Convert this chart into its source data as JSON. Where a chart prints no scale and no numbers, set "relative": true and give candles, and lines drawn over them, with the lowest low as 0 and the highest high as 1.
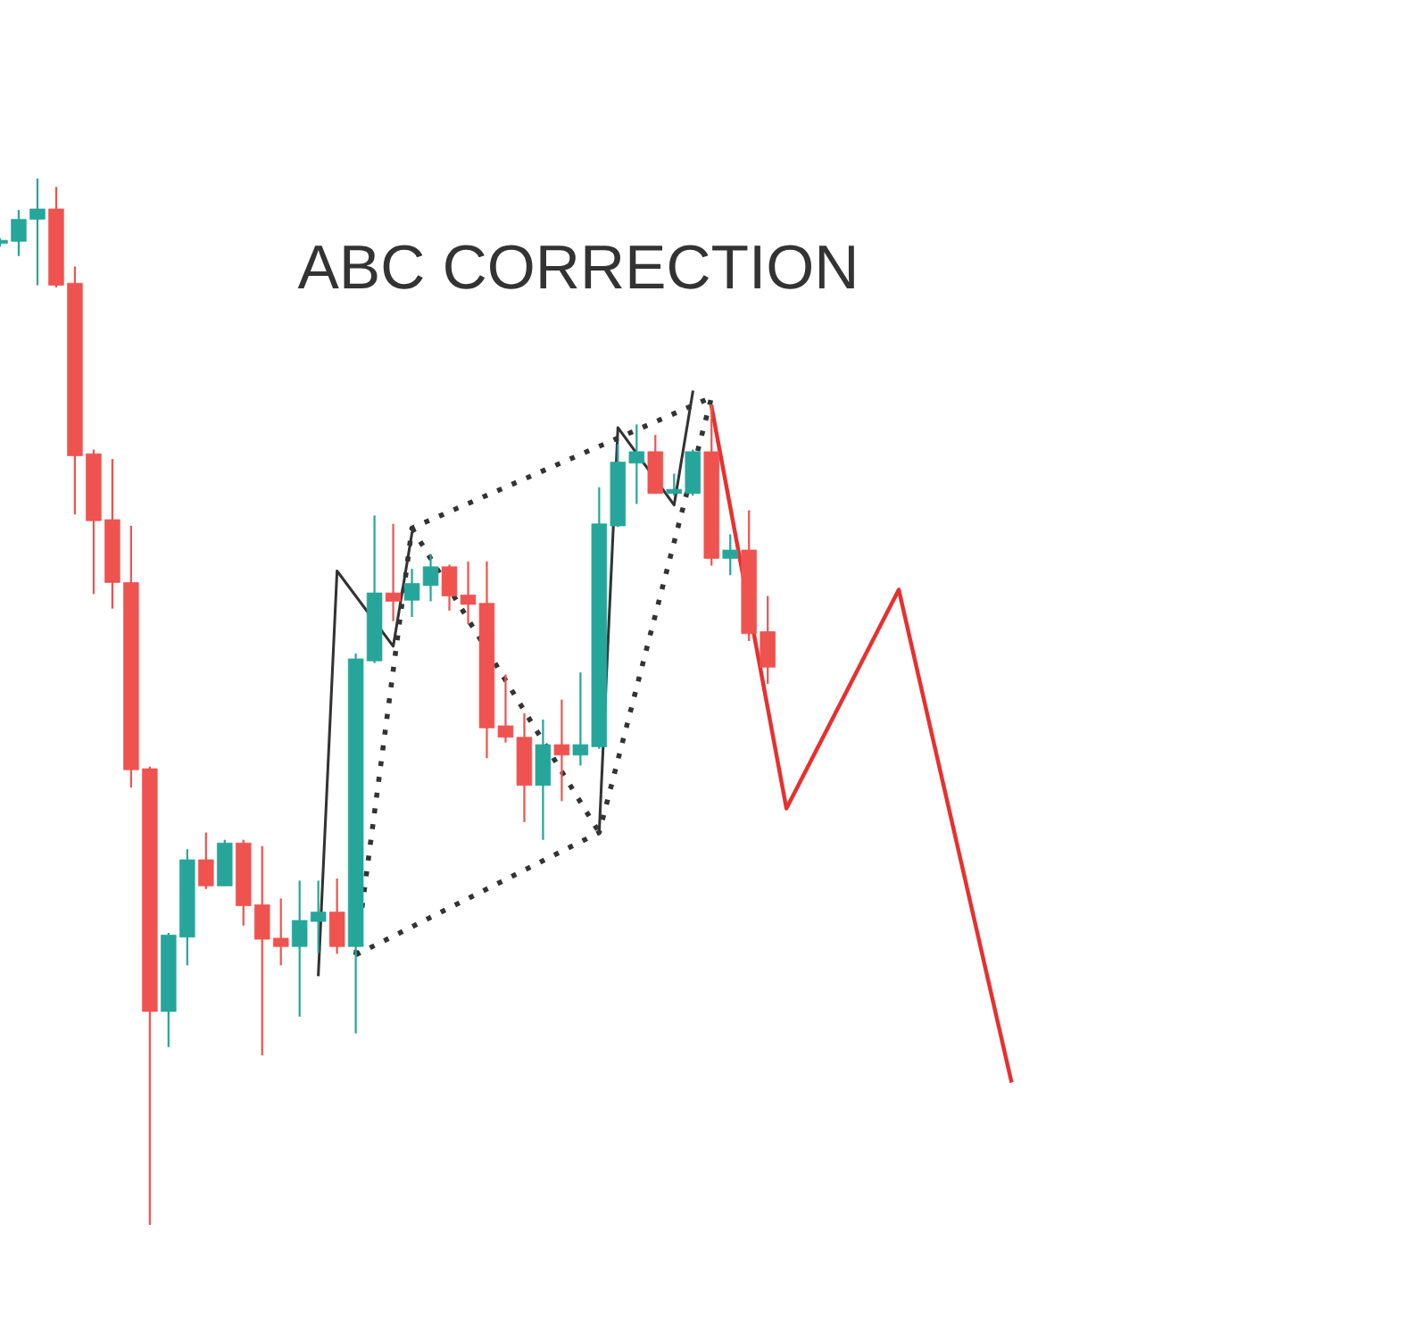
{
  "chart_data": {
    "type": "candlestick",
    "relative": true,
    "annotations": [
      "ABC CORRECTION"
    ],
    "categories": [
      null,
      null,
      null,
      null,
      null,
      null,
      null,
      null,
      null,
      null,
      null,
      null,
      null,
      null,
      null,
      null,
      null,
      null,
      null,
      null,
      null,
      null,
      null,
      null,
      null,
      null,
      null,
      null,
      null,
      null,
      null,
      null,
      null,
      null,
      null,
      null,
      null,
      null,
      null,
      null,
      null,
      null,
      null,
      null,
      null,
      null,
      null,
      null,
      null,
      null,
      null,
      null,
      null,
      null,
      null
    ],
    "ohlc": [
      [
        0.938,
        0.943,
        0.935,
        0.941
      ],
      [
        0.94,
        0.97,
        0.926,
        0.961
      ],
      [
        0.961,
        1.0,
        0.898,
        0.971
      ],
      [
        0.971,
        0.992,
        0.896,
        0.898
      ],
      [
        0.9,
        0.916,
        0.679,
        0.735
      ],
      [
        0.737,
        0.741,
        0.603,
        0.673
      ],
      [
        0.674,
        0.732,
        0.589,
        0.614
      ],
      [
        0.614,
        0.668,
        0.418,
        0.435
      ],
      [
        0.436,
        0.438,
        0.0,
        0.204
      ],
      [
        0.204,
        0.279,
        0.17,
        0.277
      ],
      [
        0.275,
        0.359,
        0.248,
        0.349
      ],
      [
        0.349,
        0.375,
        0.321,
        0.324
      ],
      [
        0.324,
        0.368,
        0.324,
        0.365
      ],
      [
        0.365,
        0.368,
        0.286,
        0.305
      ],
      [
        0.306,
        0.362,
        0.162,
        0.273
      ],
      [
        0.274,
        0.312,
        0.248,
        0.266
      ],
      [
        0.266,
        0.329,
        0.199,
        0.291
      ],
      [
        0.29,
        0.329,
        0.26,
        0.299
      ],
      [
        0.299,
        0.331,
        0.259,
        0.266
      ],
      [
        0.266,
        0.546,
        0.183,
        0.541
      ],
      [
        0.539,
        0.678,
        0.537,
        0.604
      ],
      [
        0.604,
        0.67,
        0.577,
        0.596
      ],
      [
        0.597,
        0.627,
        0.581,
        0.613
      ],
      [
        0.611,
        0.641,
        0.596,
        0.629
      ],
      [
        0.629,
        0.631,
        0.587,
        0.601
      ],
      [
        0.602,
        0.634,
        0.574,
        0.593
      ],
      [
        0.594,
        0.634,
        0.446,
        0.475
      ],
      [
        0.477,
        0.526,
        0.461,
        0.466
      ],
      [
        0.466,
        0.489,
        0.385,
        0.42
      ],
      [
        0.42,
        0.483,
        0.368,
        0.459
      ],
      [
        0.459,
        0.502,
        0.405,
        0.449
      ],
      [
        0.449,
        0.528,
        0.439,
        0.459
      ],
      [
        0.457,
        0.705,
        0.455,
        0.67
      ],
      [
        0.668,
        0.746,
        0.667,
        0.729
      ],
      [
        0.728,
        0.765,
        0.689,
        0.739
      ],
      [
        0.739,
        0.755,
        0.699,
        0.699
      ],
      [
        0.699,
        0.718,
        0.697,
        0.703
      ],
      [
        0.699,
        0.741,
        0.697,
        0.739
      ],
      [
        0.739,
        0.784,
        0.63,
        0.637
      ],
      [
        0.637,
        0.66,
        0.621,
        0.645
      ],
      [
        0.645,
        0.683,
        0.558,
        0.565
      ],
      [
        0.567,
        0.601,
        0.517,
        0.533
      ],
      null,
      null,
      null,
      null,
      null,
      null,
      null,
      null,
      null,
      null,
      null,
      null,
      null
    ],
    "colors": [
      "#26a69a",
      "#26a69a",
      "#26a69a",
      "#ef5350",
      "#ef5350",
      "#ef5350",
      "#ef5350",
      "#ef5350",
      "#ef5350",
      "#26a69a",
      "#26a69a",
      "#ef5350",
      "#26a69a",
      "#ef5350",
      "#ef5350",
      "#ef5350",
      "#26a69a",
      "#26a69a",
      "#ef5350",
      "#26a69a",
      "#26a69a",
      "#ef5350",
      "#26a69a",
      "#26a69a",
      "#ef5350",
      "#ef5350",
      "#ef5350",
      "#ef5350",
      "#ef5350",
      "#26a69a",
      "#ef5350",
      "#26a69a",
      "#26a69a",
      "#26a69a",
      "#26a69a",
      "#ef5350",
      "#26a69a",
      "#26a69a",
      "#ef5350",
      "#26a69a",
      "#ef5350",
      "#ef5350",
      null,
      null,
      null,
      null,
      null,
      null,
      null,
      null,
      null,
      null,
      null,
      null,
      null
    ],
    "series": [
      {
        "type": "line",
        "color": "#333333",
        "line_style": "solid",
        "values": [
          null,
          null,
          null,
          null,
          null,
          null,
          null,
          null,
          null,
          null,
          null,
          null,
          null,
          null,
          null,
          null,
          null,
          0.239,
          0.625,
          null,
          null,
          0.553,
          0.661,
          null,
          null,
          null,
          null,
          null,
          null,
          null,
          null,
          null,
          null,
          null,
          null,
          null,
          null,
          null,
          null,
          null,
          null,
          null,
          null,
          null,
          null,
          null,
          null,
          null,
          null,
          null,
          null,
          null,
          null,
          null,
          null
        ]
      },
      {
        "type": "line",
        "color": "#333333",
        "line_style": "solid",
        "values": [
          null,
          null,
          null,
          null,
          null,
          null,
          null,
          null,
          null,
          null,
          null,
          null,
          null,
          null,
          null,
          null,
          null,
          null,
          null,
          null,
          null,
          null,
          null,
          null,
          null,
          null,
          null,
          null,
          null,
          null,
          null,
          null,
          0.375,
          0.762,
          null,
          null,
          0.688,
          0.796,
          null,
          null,
          null,
          null,
          null,
          null,
          null,
          null,
          null,
          null,
          null,
          null,
          null,
          null,
          null,
          null,
          null
        ]
      },
      {
        "type": "line",
        "color": "#333333",
        "line_style": "dotted",
        "values": [
          null,
          null,
          null,
          null,
          null,
          null,
          null,
          null,
          null,
          null,
          null,
          null,
          null,
          null,
          null,
          null,
          null,
          null,
          null,
          0.258,
          null,
          null,
          0.666,
          null,
          null,
          null,
          null,
          null,
          null,
          null,
          null,
          null,
          null,
          null,
          null,
          null,
          null,
          null,
          0.791,
          null,
          null,
          null,
          null,
          null,
          null,
          null,
          null,
          null,
          null,
          null,
          null,
          null,
          null,
          null,
          null
        ]
      },
      {
        "type": "line",
        "color": "#333333",
        "line_style": "dotted",
        "values": [
          null,
          null,
          null,
          null,
          null,
          null,
          null,
          null,
          null,
          null,
          null,
          null,
          null,
          null,
          null,
          null,
          null,
          null,
          null,
          0.258,
          null,
          null,
          null,
          null,
          null,
          null,
          null,
          null,
          null,
          null,
          null,
          null,
          0.375,
          null,
          null,
          null,
          null,
          null,
          0.791,
          null,
          null,
          null,
          null,
          null,
          null,
          null,
          null,
          null,
          null,
          null,
          null,
          null,
          null,
          null,
          null
        ]
      },
      {
        "type": "line",
        "color": "#333333",
        "line_style": "dotted",
        "values": [
          null,
          null,
          null,
          null,
          null,
          null,
          null,
          null,
          null,
          null,
          null,
          null,
          null,
          null,
          null,
          null,
          null,
          null,
          null,
          null,
          null,
          null,
          0.666,
          null,
          null,
          null,
          null,
          null,
          null,
          null,
          null,
          null,
          0.375,
          null,
          null,
          null,
          null,
          null,
          null,
          null,
          null,
          null,
          null,
          null,
          null,
          null,
          null,
          null,
          null,
          null,
          null,
          null,
          null,
          null,
          null
        ]
      },
      {
        "type": "line",
        "color": "#e8302f",
        "line_style": "solid",
        "values": [
          null,
          null,
          null,
          null,
          null,
          null,
          null,
          null,
          null,
          null,
          null,
          null,
          null,
          null,
          null,
          null,
          null,
          null,
          null,
          null,
          null,
          null,
          null,
          null,
          null,
          null,
          null,
          null,
          null,
          null,
          null,
          null,
          null,
          null,
          null,
          null,
          null,
          null,
          0.782,
          null,
          null,
          null,
          0.398,
          null,
          null,
          null,
          null,
          null,
          0.607,
          null,
          null,
          null,
          null,
          null,
          0.138
        ]
      }
    ]
  }
}
